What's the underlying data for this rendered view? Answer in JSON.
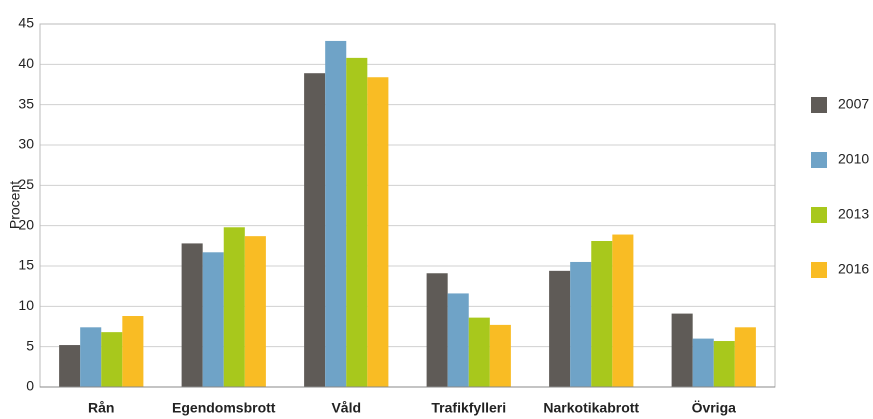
{
  "chart_data": {
    "type": "bar",
    "y_label": "Procent",
    "categories": [
      "Rån",
      "Egendomsbrott",
      "Våld",
      "Trafikfylleri",
      "Narkotikabrott",
      "Övriga"
    ],
    "series": [
      {
        "name": "2007",
        "color": "#5f5b57",
        "values": [
          5.2,
          17.8,
          38.9,
          14.1,
          14.4,
          9.1
        ]
      },
      {
        "name": "2010",
        "color": "#6fa3c7",
        "values": [
          7.4,
          16.7,
          42.9,
          11.6,
          15.5,
          6.0
        ]
      },
      {
        "name": "2013",
        "color": "#a8c81c",
        "values": [
          6.8,
          19.8,
          40.8,
          8.6,
          18.1,
          5.7
        ]
      },
      {
        "name": "2016",
        "color": "#f9bc24",
        "values": [
          8.8,
          18.7,
          38.4,
          7.7,
          18.9,
          7.4
        ]
      }
    ],
    "ylim": [
      0,
      45
    ],
    "yticks": [
      0,
      5,
      10,
      15,
      20,
      25,
      30,
      35,
      40,
      45
    ],
    "grid": true,
    "legend": "right"
  }
}
